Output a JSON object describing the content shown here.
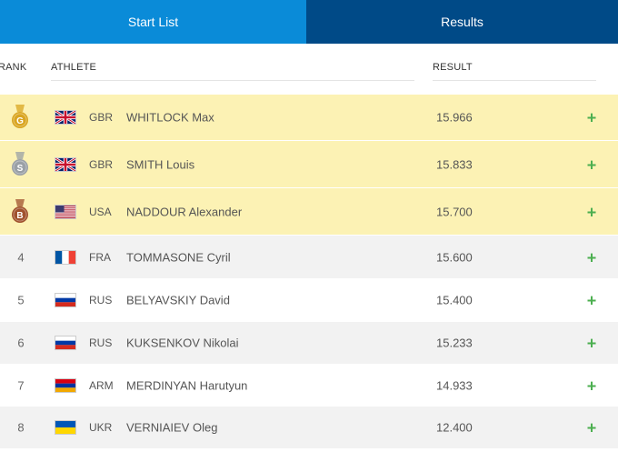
{
  "tabs": {
    "start_list": "Start List",
    "results": "Results"
  },
  "columns": {
    "rank": "RANK",
    "athlete": "ATHLETE",
    "result": "RESULT"
  },
  "rows": [
    {
      "rank": "1",
      "medal": "G",
      "medal_color": "#d9a520",
      "noc": "GBR",
      "flag": "gbr",
      "name": "WHITLOCK Max",
      "result": "15.966"
    },
    {
      "rank": "2",
      "medal": "S",
      "medal_color": "#9aa0a6",
      "noc": "GBR",
      "flag": "gbr",
      "name": "SMITH Louis",
      "result": "15.833"
    },
    {
      "rank": "3",
      "medal": "B",
      "medal_color": "#a0522d",
      "noc": "USA",
      "flag": "usa",
      "name": "NADDOUR Alexander",
      "result": "15.700"
    },
    {
      "rank": "4",
      "medal": "",
      "noc": "FRA",
      "flag": "fra",
      "name": "TOMMASONE Cyril",
      "result": "15.600"
    },
    {
      "rank": "5",
      "medal": "",
      "noc": "RUS",
      "flag": "rus",
      "name": "BELYAVSKIY David",
      "result": "15.400"
    },
    {
      "rank": "6",
      "medal": "",
      "noc": "RUS",
      "flag": "rus",
      "name": "KUKSENKOV Nikolai",
      "result": "15.233"
    },
    {
      "rank": "7",
      "medal": "",
      "noc": "ARM",
      "flag": "arm",
      "name": "MERDINYAN Harutyun",
      "result": "14.933"
    },
    {
      "rank": "8",
      "medal": "",
      "noc": "UKR",
      "flag": "ukr",
      "name": "VERNIAIEV Oleg",
      "result": "12.400"
    }
  ],
  "expand_symbol": "+",
  "colors": {
    "tab_active": "#0a8bd8",
    "tab_inactive": "#004a87",
    "medal_row": "#fcf2b4",
    "plus": "#4caf50"
  }
}
